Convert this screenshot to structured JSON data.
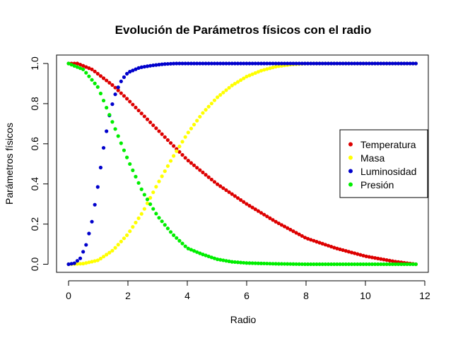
{
  "chart_data": {
    "type": "scatter",
    "title": "Evolución de Parámetros físicos con el radio",
    "xlabel": "Radio",
    "ylabel": "Parámetros físicos",
    "xlim": [
      0,
      12
    ],
    "ylim": [
      0,
      1
    ],
    "x_ticks": [
      "0",
      "2",
      "4",
      "6",
      "8",
      "10",
      "12"
    ],
    "y_ticks": [
      "0.0",
      "0.2",
      "0.4",
      "0.6",
      "0.8",
      "1.0"
    ],
    "grid": false,
    "legend_position": "right",
    "x_start": 0,
    "x_end": 11.7,
    "n_points": 120,
    "series": [
      {
        "name": "Temperatura",
        "color": "#dd0000",
        "points": [
          [
            0,
            1.0
          ],
          [
            0.3,
            1.0
          ],
          [
            0.8,
            0.97
          ],
          [
            1.5,
            0.89
          ],
          [
            2,
            0.82
          ],
          [
            3,
            0.67
          ],
          [
            4,
            0.52
          ],
          [
            5,
            0.4
          ],
          [
            6,
            0.3
          ],
          [
            7,
            0.21
          ],
          [
            8,
            0.13
          ],
          [
            9,
            0.08
          ],
          [
            10,
            0.04
          ],
          [
            11,
            0.013
          ],
          [
            11.7,
            0.0
          ]
        ]
      },
      {
        "name": "Masa",
        "color": "#ffff00",
        "points": [
          [
            0,
            0.0
          ],
          [
            0.5,
            0.003
          ],
          [
            1,
            0.02
          ],
          [
            1.5,
            0.07
          ],
          [
            2,
            0.15
          ],
          [
            2.5,
            0.26
          ],
          [
            3,
            0.4
          ],
          [
            3.5,
            0.53
          ],
          [
            4,
            0.65
          ],
          [
            4.5,
            0.75
          ],
          [
            5,
            0.83
          ],
          [
            5.5,
            0.89
          ],
          [
            6,
            0.935
          ],
          [
            6.5,
            0.965
          ],
          [
            7,
            0.985
          ],
          [
            7.5,
            0.995
          ],
          [
            8,
            1.0
          ],
          [
            11.7,
            1.0
          ]
        ]
      },
      {
        "name": "Luminosidad",
        "color": "#0000cc",
        "points": [
          [
            0,
            0.0
          ],
          [
            0.2,
            0.005
          ],
          [
            0.4,
            0.03
          ],
          [
            0.6,
            0.1
          ],
          [
            0.8,
            0.22
          ],
          [
            1.0,
            0.4
          ],
          [
            1.2,
            0.6
          ],
          [
            1.4,
            0.76
          ],
          [
            1.6,
            0.86
          ],
          [
            1.8,
            0.92
          ],
          [
            2.0,
            0.955
          ],
          [
            2.4,
            0.98
          ],
          [
            2.8,
            0.99
          ],
          [
            3.2,
            0.997
          ],
          [
            3.6,
            1.0
          ],
          [
            11.7,
            1.0
          ]
        ]
      },
      {
        "name": "Presión",
        "color": "#00ee00",
        "points": [
          [
            0,
            1.0
          ],
          [
            0.5,
            0.97
          ],
          [
            1,
            0.88
          ],
          [
            1.5,
            0.7
          ],
          [
            2,
            0.52
          ],
          [
            2.5,
            0.36
          ],
          [
            3,
            0.24
          ],
          [
            3.5,
            0.15
          ],
          [
            4,
            0.08
          ],
          [
            4.5,
            0.05
          ],
          [
            5,
            0.025
          ],
          [
            5.5,
            0.012
          ],
          [
            6,
            0.006
          ],
          [
            7,
            0.002
          ],
          [
            8,
            0.0
          ],
          [
            11.7,
            0.0
          ]
        ]
      }
    ]
  }
}
